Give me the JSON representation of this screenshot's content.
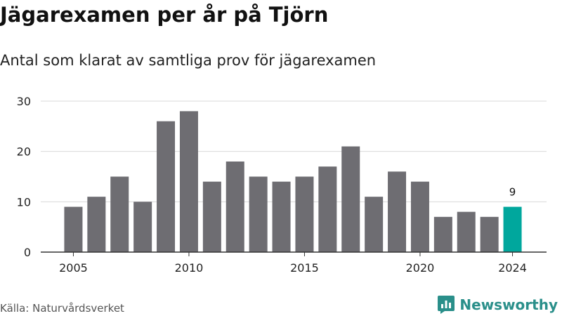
{
  "chart_data": {
    "type": "bar",
    "title": "Jägarexamen per år på Tjörn",
    "subtitle": "Antal som klarat av samtliga prov för jägarexamen",
    "categories": [
      "2005",
      "2006",
      "2007",
      "2008",
      "2009",
      "2010",
      "2011",
      "2012",
      "2013",
      "2014",
      "2015",
      "2016",
      "2017",
      "2018",
      "2019",
      "2020",
      "2021",
      "2022",
      "2023",
      "2024"
    ],
    "values": [
      9,
      11,
      15,
      10,
      26,
      28,
      14,
      18,
      15,
      14,
      15,
      17,
      21,
      11,
      16,
      14,
      7,
      8,
      7,
      9
    ],
    "highlight_index": 19,
    "highlight_label": "9",
    "xticks": [
      "2005",
      "2010",
      "2015",
      "2020",
      "2024"
    ],
    "yticks": [
      0,
      10,
      20,
      30
    ],
    "ylim": [
      0,
      30
    ],
    "xlabel": "",
    "ylabel": "",
    "grid": true,
    "colors": {
      "bar": "#6e6d72",
      "highlight": "#00a79d",
      "grid": "#d9d9d9",
      "axis": "#333333"
    }
  },
  "footer": {
    "source": "Källa: Naturvårdsverket",
    "brand": "Newsworthy",
    "brand_icon": "bar-chart-logo-icon",
    "brand_color": "#2a8f8a"
  }
}
